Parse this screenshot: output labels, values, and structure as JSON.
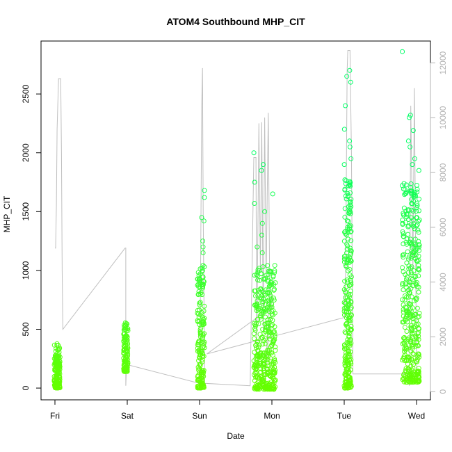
{
  "chart_data": {
    "type": "scatter",
    "title": "ATOM4 Southbound MHP_CIT",
    "xlabel": "Date",
    "ylabel": "MHP_CIT",
    "x_categories": [
      "Fri",
      "Sat",
      "Sun",
      "Mon",
      "Tue",
      "Wed"
    ],
    "ylim": [
      -100,
      2950
    ],
    "yticks": [
      0,
      500,
      1000,
      1500,
      2000,
      2500
    ],
    "y2lim": [
      -300,
      12800
    ],
    "y2ticks": [
      0,
      2000,
      4000,
      6000,
      8000,
      10000,
      12000
    ],
    "grid": false,
    "legend": "none",
    "colors": {
      "points_low": "#66ff00",
      "points_high": "#00ff66",
      "line": "#bfbfbf",
      "axis": "#000000",
      "right_axis": "#b3b3b3"
    },
    "scatter_groups": [
      {
        "day": "Fri",
        "x_center": 0.03,
        "x_spread": 0.04,
        "y_min": 0,
        "y_max": 380,
        "count": 160,
        "outliers": []
      },
      {
        "day": "Sat",
        "x_center": 0.98,
        "x_spread": 0.03,
        "y_min": 140,
        "y_max": 560,
        "count": 120,
        "outliers": []
      },
      {
        "day": "Sun",
        "x_center": 2.02,
        "x_spread": 0.05,
        "y_min": 0,
        "y_max": 1050,
        "count": 170,
        "outliers": [
          1680,
          1620,
          1450,
          1420,
          1250,
          1200,
          1150
        ]
      },
      {
        "day": "Mon",
        "x_center": 2.9,
        "x_spread": 0.15,
        "y_min": -10,
        "y_max": 1050,
        "count": 380,
        "outliers": [
          2000,
          1900,
          1850,
          1750,
          1650,
          1570,
          1500,
          1400,
          1300,
          1200,
          1150
        ]
      },
      {
        "day": "Tue",
        "x_center": 4.05,
        "x_spread": 0.05,
        "y_min": 0,
        "y_max": 1800,
        "count": 260,
        "outliers": [
          2700,
          2650,
          2600,
          2400,
          2200,
          2100,
          2050,
          1950,
          1900
        ]
      },
      {
        "day": "Wed",
        "x_center": 4.92,
        "x_spread": 0.12,
        "y_min": 50,
        "y_max": 1750,
        "count": 380,
        "outliers": [
          2860,
          2320,
          2300,
          2190,
          2100,
          2050,
          1950,
          1900,
          1850
        ]
      }
    ],
    "line_path": [
      [
        0.0,
        1190
      ],
      [
        0.01,
        1190
      ],
      [
        0.02,
        1550
      ],
      [
        0.03,
        2200
      ],
      [
        0.05,
        2630
      ],
      [
        0.08,
        2630
      ],
      [
        0.09,
        2000
      ],
      [
        0.1,
        1000
      ],
      [
        0.11,
        500
      ],
      [
        0.97,
        1190
      ],
      [
        0.98,
        1190
      ],
      [
        0.98,
        20
      ],
      [
        0.99,
        200
      ],
      [
        2.0,
        40
      ],
      [
        2.01,
        600
      ],
      [
        2.03,
        2400
      ],
      [
        2.04,
        2720
      ],
      [
        2.05,
        1500
      ],
      [
        2.07,
        40
      ],
      [
        2.7,
        20
      ],
      [
        2.75,
        1960
      ],
      [
        2.78,
        1960
      ],
      [
        2.79,
        300
      ],
      [
        2.82,
        2250
      ],
      [
        2.84,
        1000
      ],
      [
        2.86,
        2260
      ],
      [
        2.88,
        500
      ],
      [
        2.9,
        2300
      ],
      [
        2.92,
        900
      ],
      [
        2.95,
        2340
      ],
      [
        2.97,
        800
      ],
      [
        2.9,
        30
      ],
      [
        3.0,
        800
      ],
      [
        3.02,
        700
      ],
      [
        2.1,
        290
      ],
      [
        4.0,
        600
      ],
      [
        4.02,
        1000
      ],
      [
        4.04,
        2700
      ],
      [
        4.05,
        2870
      ],
      [
        4.08,
        2870
      ],
      [
        4.1,
        2000
      ],
      [
        4.12,
        120
      ],
      [
        4.88,
        120
      ],
      [
        4.9,
        20
      ],
      [
        4.92,
        2400
      ],
      [
        4.95,
        1000
      ],
      [
        4.97,
        2550
      ],
      [
        5.0,
        120
      ]
    ]
  }
}
